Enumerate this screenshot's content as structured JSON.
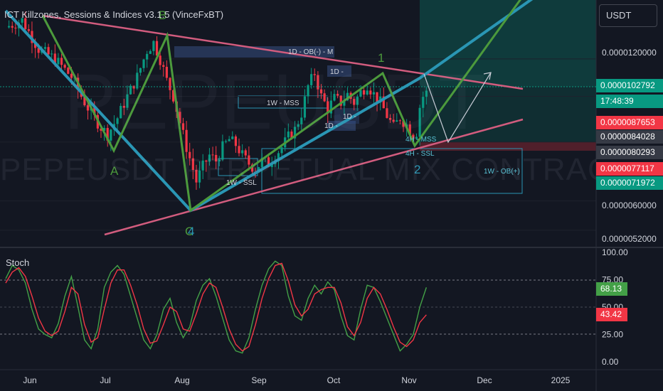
{
  "legend": {
    "title": "ICT Killzones, Sessions & Indices v3.1.5 (VinceFxBT)"
  },
  "watermark": {
    "line1": "PEPEUSDT",
    "line2": "PEPEUSDT PERPETUAL MIX CONTRACT"
  },
  "toolbar": {
    "currency": "USDT"
  },
  "price_tags": [
    {
      "text": "0.0000102792",
      "bg": "#089981"
    },
    {
      "text": "17:48:39",
      "bg": "#089981"
    },
    {
      "text": "0.0000087653",
      "bg": "#f23645"
    },
    {
      "text": "0.0000084028",
      "bg": "#363a45"
    },
    {
      "text": "0.0000080293",
      "bg": "#363a45"
    },
    {
      "text": "0.0000077117",
      "bg": "#f23645"
    },
    {
      "text": "0.0000071972",
      "bg": "#089981"
    }
  ],
  "stoch": {
    "title": "Stoch",
    "k_value": "68.13",
    "d_value": "43.42",
    "k_color": "#43a047",
    "d_color": "#f23645"
  },
  "annotations": {
    "ob_1d": "1D - OB(-) - M",
    "mss_1w": "1W - MSS",
    "ssl_1w": "1W - SSL",
    "ob_1w": "1W - OB(+)",
    "d1": "1D -",
    "d2": "1D -",
    "d3": "1D -",
    "mss_4h": "4H - MSS",
    "ssl_4h": "4H - SSL",
    "wave_a": "A",
    "wave_b": "B",
    "wave_c": "C",
    "wave_4": "4",
    "wave_1": "1",
    "wave_2": "2"
  },
  "colors": {
    "bg": "#131722",
    "up": "#089981",
    "down": "#f23645",
    "grid": "#2a2e39",
    "trend_pink": "#d25c7e",
    "trend_teal": "#2a96b4",
    "wave_green": "#4c9a3c"
  },
  "chart_data": {
    "type": "candlestick",
    "symbol": "PEPEUSDT",
    "x_ticks": [
      "Jun",
      "Jul",
      "Aug",
      "Sep",
      "Oct",
      "Nov",
      "Dec",
      "2025"
    ],
    "y_ticks": [
      "0.0000120000",
      "0.0000060000",
      "0.0000052000"
    ],
    "price_axis_scale": "log",
    "price_range": [
      4.8e-06,
      1.6e-05
    ],
    "last_price": 1.02792e-05,
    "stoch_axis_ticks": [
      "100.00",
      "75.00",
      "50.00",
      "25.00",
      "0.00"
    ],
    "stoch_range": [
      0,
      100
    ],
    "stoch_k_last": 68.13,
    "stoch_d_last": 43.42,
    "price_path": [
      [
        0,
        1.4e-05
      ],
      [
        5,
        1.45e-05
      ],
      [
        10,
        1.26e-05
      ],
      [
        15,
        1.2e-05
      ],
      [
        20,
        1.1e-05
      ],
      [
        23,
        1e-05
      ],
      [
        26,
        9.2e-06
      ],
      [
        29,
        8.6e-06
      ],
      [
        31,
        8.3e-06
      ],
      [
        34,
        9e-06
      ],
      [
        37,
        1e-05
      ],
      [
        40,
        1.1e-05
      ],
      [
        43,
        1.25e-05
      ],
      [
        45,
        1.3e-05
      ],
      [
        47,
        1.2e-05
      ],
      [
        49,
        1.08e-05
      ],
      [
        51,
        1e-05
      ],
      [
        53,
        8.8e-06
      ],
      [
        55,
        7.8e-06
      ],
      [
        57,
        7e-06
      ],
      [
        58,
        6.6e-06
      ],
      [
        60,
        7.1e-06
      ],
      [
        62,
        7.5e-06
      ],
      [
        64,
        7.3e-06
      ],
      [
        66,
        7.8e-06
      ],
      [
        68,
        8.1e-06
      ],
      [
        70,
        7.9e-06
      ],
      [
        72,
        7.5e-06
      ],
      [
        74,
        7.2e-06
      ],
      [
        76,
        7e-06
      ],
      [
        78,
        7.3e-06
      ],
      [
        80,
        7.2e-06
      ],
      [
        82,
        7.5e-06
      ],
      [
        84,
        7.8e-06
      ],
      [
        86,
        8.2e-06
      ],
      [
        88,
        8.5e-06
      ],
      [
        90,
        9.2e-06
      ],
      [
        92,
        1.05e-05
      ],
      [
        94,
        1.12e-05
      ],
      [
        96,
        1e-05
      ],
      [
        98,
        9.4e-06
      ],
      [
        100,
        9.9e-06
      ],
      [
        102,
        9.7e-06
      ],
      [
        104,
        1.01e-05
      ],
      [
        106,
        9.7e-06
      ],
      [
        108,
        1.02e-05
      ],
      [
        110,
        1.06e-05
      ],
      [
        112,
        1.01e-05
      ],
      [
        114,
        9.7e-06
      ],
      [
        116,
        9.1e-06
      ],
      [
        118,
        8.6e-06
      ],
      [
        120,
        9e-06
      ],
      [
        122,
        8.7e-06
      ],
      [
        124,
        8.3e-06
      ],
      [
        125,
        8.4e-06
      ],
      [
        126,
        9.5e-06
      ],
      [
        127,
        1e-05
      ],
      [
        128,
        1.02792e-05
      ]
    ],
    "stoch_k": [
      [
        0,
        76
      ],
      [
        2,
        88
      ],
      [
        4,
        84
      ],
      [
        6,
        72
      ],
      [
        8,
        48
      ],
      [
        10,
        30
      ],
      [
        12,
        25
      ],
      [
        14,
        22
      ],
      [
        16,
        35
      ],
      [
        18,
        60
      ],
      [
        20,
        78
      ],
      [
        22,
        50
      ],
      [
        24,
        20
      ],
      [
        26,
        12
      ],
      [
        28,
        30
      ],
      [
        30,
        68
      ],
      [
        32,
        82
      ],
      [
        34,
        88
      ],
      [
        36,
        80
      ],
      [
        38,
        60
      ],
      [
        40,
        40
      ],
      [
        42,
        20
      ],
      [
        44,
        12
      ],
      [
        46,
        25
      ],
      [
        48,
        48
      ],
      [
        50,
        58
      ],
      [
        52,
        36
      ],
      [
        54,
        22
      ],
      [
        56,
        32
      ],
      [
        58,
        56
      ],
      [
        60,
        70
      ],
      [
        62,
        76
      ],
      [
        64,
        60
      ],
      [
        66,
        40
      ],
      [
        68,
        20
      ],
      [
        70,
        10
      ],
      [
        72,
        8
      ],
      [
        74,
        22
      ],
      [
        76,
        48
      ],
      [
        78,
        70
      ],
      [
        80,
        85
      ],
      [
        82,
        92
      ],
      [
        84,
        88
      ],
      [
        86,
        60
      ],
      [
        88,
        42
      ],
      [
        90,
        38
      ],
      [
        92,
        58
      ],
      [
        94,
        70
      ],
      [
        96,
        62
      ],
      [
        98,
        73
      ],
      [
        100,
        66
      ],
      [
        102,
        42
      ],
      [
        104,
        24
      ],
      [
        106,
        20
      ],
      [
        108,
        48
      ],
      [
        110,
        70
      ],
      [
        112,
        68
      ],
      [
        114,
        55
      ],
      [
        116,
        40
      ],
      [
        118,
        25
      ],
      [
        120,
        10
      ],
      [
        122,
        16
      ],
      [
        124,
        25
      ],
      [
        126,
        50
      ],
      [
        128,
        68
      ]
    ],
    "stoch_d": [
      [
        0,
        72
      ],
      [
        2,
        82
      ],
      [
        4,
        86
      ],
      [
        6,
        78
      ],
      [
        8,
        60
      ],
      [
        10,
        40
      ],
      [
        12,
        28
      ],
      [
        14,
        24
      ],
      [
        16,
        28
      ],
      [
        18,
        46
      ],
      [
        20,
        68
      ],
      [
        22,
        62
      ],
      [
        24,
        34
      ],
      [
        26,
        18
      ],
      [
        28,
        22
      ],
      [
        30,
        48
      ],
      [
        32,
        72
      ],
      [
        34,
        84
      ],
      [
        36,
        84
      ],
      [
        38,
        70
      ],
      [
        40,
        52
      ],
      [
        42,
        30
      ],
      [
        44,
        17
      ],
      [
        46,
        19
      ],
      [
        48,
        34
      ],
      [
        50,
        50
      ],
      [
        52,
        46
      ],
      [
        54,
        30
      ],
      [
        56,
        28
      ],
      [
        58,
        44
      ],
      [
        60,
        62
      ],
      [
        62,
        72
      ],
      [
        64,
        68
      ],
      [
        66,
        50
      ],
      [
        68,
        30
      ],
      [
        70,
        16
      ],
      [
        72,
        10
      ],
      [
        74,
        14
      ],
      [
        76,
        34
      ],
      [
        78,
        58
      ],
      [
        80,
        76
      ],
      [
        82,
        88
      ],
      [
        84,
        90
      ],
      [
        86,
        74
      ],
      [
        88,
        52
      ],
      [
        90,
        42
      ],
      [
        92,
        48
      ],
      [
        94,
        62
      ],
      [
        96,
        66
      ],
      [
        98,
        68
      ],
      [
        100,
        68
      ],
      [
        102,
        54
      ],
      [
        104,
        32
      ],
      [
        106,
        24
      ],
      [
        108,
        36
      ],
      [
        110,
        58
      ],
      [
        112,
        68
      ],
      [
        114,
        62
      ],
      [
        116,
        48
      ],
      [
        118,
        32
      ],
      [
        120,
        18
      ],
      [
        122,
        14
      ],
      [
        124,
        20
      ],
      [
        126,
        36
      ],
      [
        128,
        43
      ]
    ]
  }
}
